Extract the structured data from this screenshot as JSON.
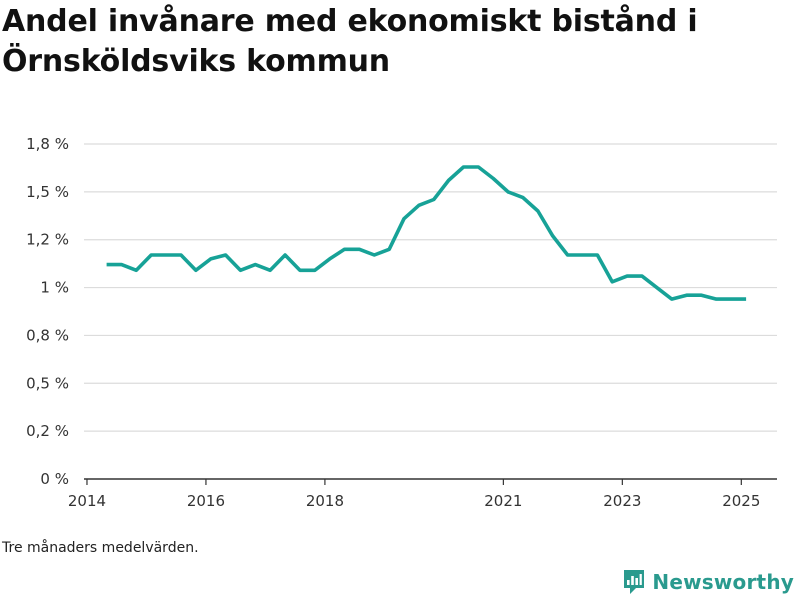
{
  "title": "Andel invånare med ekonomiskt bistånd i Örnsköldsviks kommun",
  "footnote": "Tre månaders medelvärden.",
  "brand": {
    "name": "Newsworthy",
    "icon": "newsworthy-logo-icon",
    "color": "#2a9a8e"
  },
  "chart_data": {
    "type": "line",
    "title": "Andel invånare med ekonomiskt bistånd i Örnsköldsviks kommun",
    "xlabel": "",
    "ylabel": "",
    "ylim": [
      0,
      1.75
    ],
    "xlim": [
      2013.95,
      2025.6
    ],
    "grid": true,
    "legend": "none",
    "line_color": "#17a297",
    "y_ticks": [
      {
        "value": 0,
        "label": "0 %"
      },
      {
        "value": 0.25,
        "label": "0,2 %"
      },
      {
        "value": 0.5,
        "label": "0,5 %"
      },
      {
        "value": 0.75,
        "label": "0,8 %"
      },
      {
        "value": 1.0,
        "label": "1 %"
      },
      {
        "value": 1.25,
        "label": "1,2 %"
      },
      {
        "value": 1.5,
        "label": "1,5 %"
      },
      {
        "value": 1.75,
        "label": "1,8 %"
      }
    ],
    "x_ticks": [
      {
        "value": 2014,
        "label": "2014"
      },
      {
        "value": 2016,
        "label": "2016"
      },
      {
        "value": 2018,
        "label": "2018"
      },
      {
        "value": 2021,
        "label": "2021"
      },
      {
        "value": 2023,
        "label": "2023"
      },
      {
        "value": 2025,
        "label": "2025"
      }
    ],
    "series": [
      {
        "x": [
          2014.33,
          2014.58,
          2014.83,
          2015.08,
          2015.33,
          2015.58,
          2015.83,
          2016.08,
          2016.33,
          2016.58,
          2016.83,
          2017.08,
          2017.33,
          2017.58,
          2017.83,
          2018.08,
          2018.33,
          2018.58,
          2018.83,
          2019.08,
          2019.33,
          2019.58,
          2019.83,
          2020.08,
          2020.33,
          2020.58,
          2020.83,
          2021.08,
          2021.33,
          2021.58,
          2021.83,
          2022.08,
          2022.33,
          2022.58,
          2022.83,
          2023.08,
          2023.33,
          2023.58,
          2023.83,
          2024.08,
          2024.33,
          2024.58,
          2024.83,
          2025.08
        ],
        "values": [
          1.12,
          1.12,
          1.09,
          1.17,
          1.17,
          1.17,
          1.09,
          1.15,
          1.17,
          1.09,
          1.12,
          1.09,
          1.17,
          1.09,
          1.09,
          1.15,
          1.2,
          1.2,
          1.17,
          1.2,
          1.36,
          1.43,
          1.46,
          1.56,
          1.63,
          1.63,
          1.57,
          1.5,
          1.47,
          1.4,
          1.27,
          1.17,
          1.17,
          1.17,
          1.03,
          1.06,
          1.06,
          1.0,
          0.94,
          0.96,
          0.96,
          0.94,
          0.94,
          0.94
        ]
      }
    ]
  }
}
